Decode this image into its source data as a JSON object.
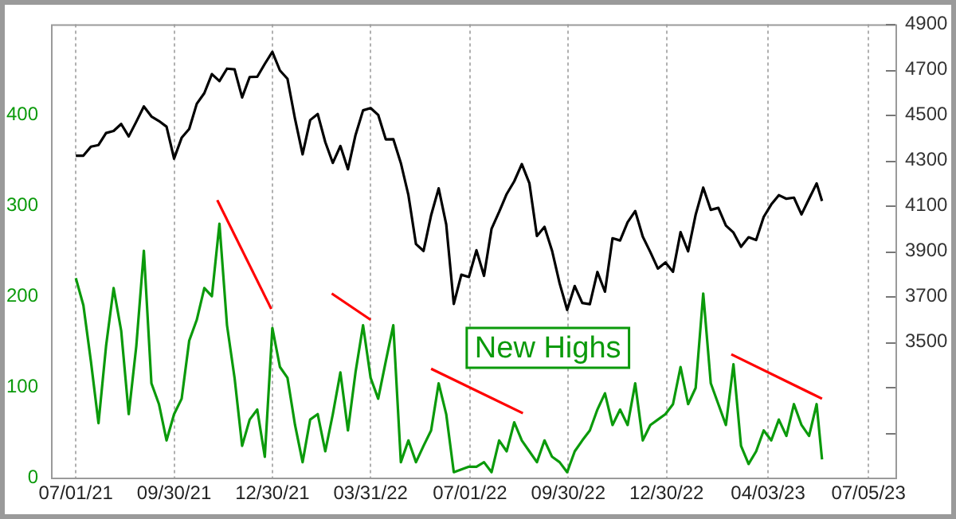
{
  "chart_data": {
    "type": "line",
    "marker": "none",
    "grid": "x",
    "x": [
      "2021-07-01",
      "2021-07-08",
      "2021-07-15",
      "2021-07-22",
      "2021-07-29",
      "2021-08-05",
      "2021-08-12",
      "2021-08-19",
      "2021-08-26",
      "2021-09-02",
      "2021-09-09",
      "2021-09-16",
      "2021-09-23",
      "2021-09-30",
      "2021-10-07",
      "2021-10-14",
      "2021-10-21",
      "2021-10-28",
      "2021-11-04",
      "2021-11-11",
      "2021-11-18",
      "2021-11-25",
      "2021-12-02",
      "2021-12-09",
      "2021-12-16",
      "2021-12-23",
      "2021-12-30",
      "2022-01-06",
      "2022-01-13",
      "2022-01-20",
      "2022-01-27",
      "2022-02-03",
      "2022-02-10",
      "2022-02-17",
      "2022-02-24",
      "2022-03-03",
      "2022-03-10",
      "2022-03-17",
      "2022-03-24",
      "2022-03-31",
      "2022-04-07",
      "2022-04-14",
      "2022-04-21",
      "2022-04-28",
      "2022-05-05",
      "2022-05-12",
      "2022-05-19",
      "2022-05-26",
      "2022-06-02",
      "2022-06-09",
      "2022-06-16",
      "2022-06-23",
      "2022-06-30",
      "2022-07-07",
      "2022-07-14",
      "2022-07-21",
      "2022-07-28",
      "2022-08-04",
      "2022-08-11",
      "2022-08-18",
      "2022-08-25",
      "2022-09-01",
      "2022-09-08",
      "2022-09-15",
      "2022-09-22",
      "2022-09-29",
      "2022-10-06",
      "2022-10-13",
      "2022-10-20",
      "2022-10-27",
      "2022-11-03",
      "2022-11-10",
      "2022-11-17",
      "2022-11-24",
      "2022-12-01",
      "2022-12-08",
      "2022-12-15",
      "2022-12-22",
      "2022-12-29",
      "2023-01-05",
      "2023-01-12",
      "2023-01-19",
      "2023-01-26",
      "2023-02-02",
      "2023-02-09",
      "2023-02-16",
      "2023-02-23",
      "2023-03-02",
      "2023-03-09",
      "2023-03-16",
      "2023-03-23",
      "2023-03-30",
      "2023-04-06",
      "2023-04-13",
      "2023-04-20",
      "2023-04-27",
      "2023-05-04",
      "2023-05-11",
      "2023-05-18",
      "2023-05-23"
    ],
    "series": [
      {
        "color": "#000000",
        "axis": "y2",
        "values": [
          4320,
          4320,
          4360,
          4367,
          4420,
          4429,
          4460,
          4405,
          4470,
          4537,
          4493,
          4473,
          4448,
          4307,
          4399,
          4438,
          4549,
          4596,
          4680,
          4649,
          4704,
          4701,
          4577,
          4667,
          4668,
          4725,
          4778,
          4696,
          4659,
          4482,
          4326,
          4477,
          4504,
          4380,
          4288,
          4363,
          4260,
          4411,
          4520,
          4530,
          4500,
          4392,
          4393,
          4287,
          4146,
          3930,
          3900,
          4057,
          4176,
          4017,
          3666,
          3795,
          3785,
          3903,
          3790,
          3998,
          4072,
          4151,
          4207,
          4283,
          4199,
          3966,
          4006,
          3901,
          3757,
          3640,
          3745,
          3670,
          3665,
          3807,
          3720,
          3956,
          3946,
          4027,
          4076,
          3963,
          3895,
          3822,
          3849,
          3808,
          3983,
          3898,
          4060,
          4179,
          4081,
          4090,
          4012,
          3981,
          3918,
          3960,
          3948,
          4050,
          4105,
          4146,
          4130,
          4135,
          4061,
          4130,
          4198,
          4120
        ]
      },
      {
        "name": "New Highs",
        "color": "#0b9a0b",
        "values": [
          220,
          190,
          128,
          60,
          145,
          209,
          162,
          70,
          145,
          250,
          104,
          81,
          41,
          70,
          87,
          151,
          174,
          209,
          200,
          280,
          168,
          110,
          35,
          64,
          75,
          23,
          165,
          122,
          110,
          58,
          17,
          64,
          70,
          29,
          70,
          116,
          52,
          116,
          168,
          110,
          87,
          128,
          168,
          17,
          41,
          17,
          35,
          52,
          104,
          70,
          6,
          9,
          12,
          12,
          17,
          6,
          41,
          29,
          61,
          41,
          29,
          17,
          41,
          23,
          17,
          6,
          29,
          41,
          52,
          75,
          93,
          58,
          75,
          58,
          104,
          41,
          58,
          64,
          70,
          81,
          122,
          81,
          99,
          203,
          104,
          81,
          58,
          125,
          35,
          15,
          29,
          52,
          41,
          64,
          46,
          81,
          58,
          46,
          81,
          20
        ]
      },
      {
        "type": "line",
        "color": "#ff0000",
        "x": [
          "2021-11-09",
          "2021-12-29"
        ],
        "values": [
          306,
          186
        ]
      },
      {
        "type": "line",
        "color": "#ff0000",
        "x": [
          "2022-02-23",
          "2022-03-31"
        ],
        "values": [
          203,
          174
        ]
      },
      {
        "type": "line",
        "color": "#ff0000",
        "x": [
          "2022-05-26",
          "2022-08-19"
        ],
        "values": [
          120,
          71
        ]
      },
      {
        "type": "line",
        "color": "#ff0000",
        "x": [
          "2023-02-28",
          "2023-05-23"
        ],
        "values": [
          136,
          87
        ]
      }
    ],
    "xlim": [
      "2021-06-08",
      "2023-07-30"
    ],
    "xticks": [
      {
        "value": "2021-07-01",
        "label": "07/01/21"
      },
      {
        "value": "2021-09-30",
        "label": "09/30/21"
      },
      {
        "value": "2021-12-30",
        "label": "12/30/21"
      },
      {
        "value": "2022-03-31",
        "label": "03/31/22"
      },
      {
        "value": "2022-07-01",
        "label": "07/01/22"
      },
      {
        "value": "2022-09-30",
        "label": "09/30/22"
      },
      {
        "value": "2022-12-30",
        "label": "12/30/22"
      },
      {
        "value": "2023-04-03",
        "label": "04/03/23"
      },
      {
        "value": "2023-07-05",
        "label": "07/05/23"
      }
    ],
    "ylim": [
      0,
      500
    ],
    "yticks": [
      0,
      100,
      200,
      300,
      400
    ],
    "y2lim": [
      2900,
      4900
    ],
    "y2ticks": [
      {
        "value": 3100,
        "label": null
      },
      {
        "value": 3300,
        "label": null
      },
      3500,
      3700,
      3900,
      4100,
      4300,
      4500,
      4700,
      4900
    ]
  }
}
